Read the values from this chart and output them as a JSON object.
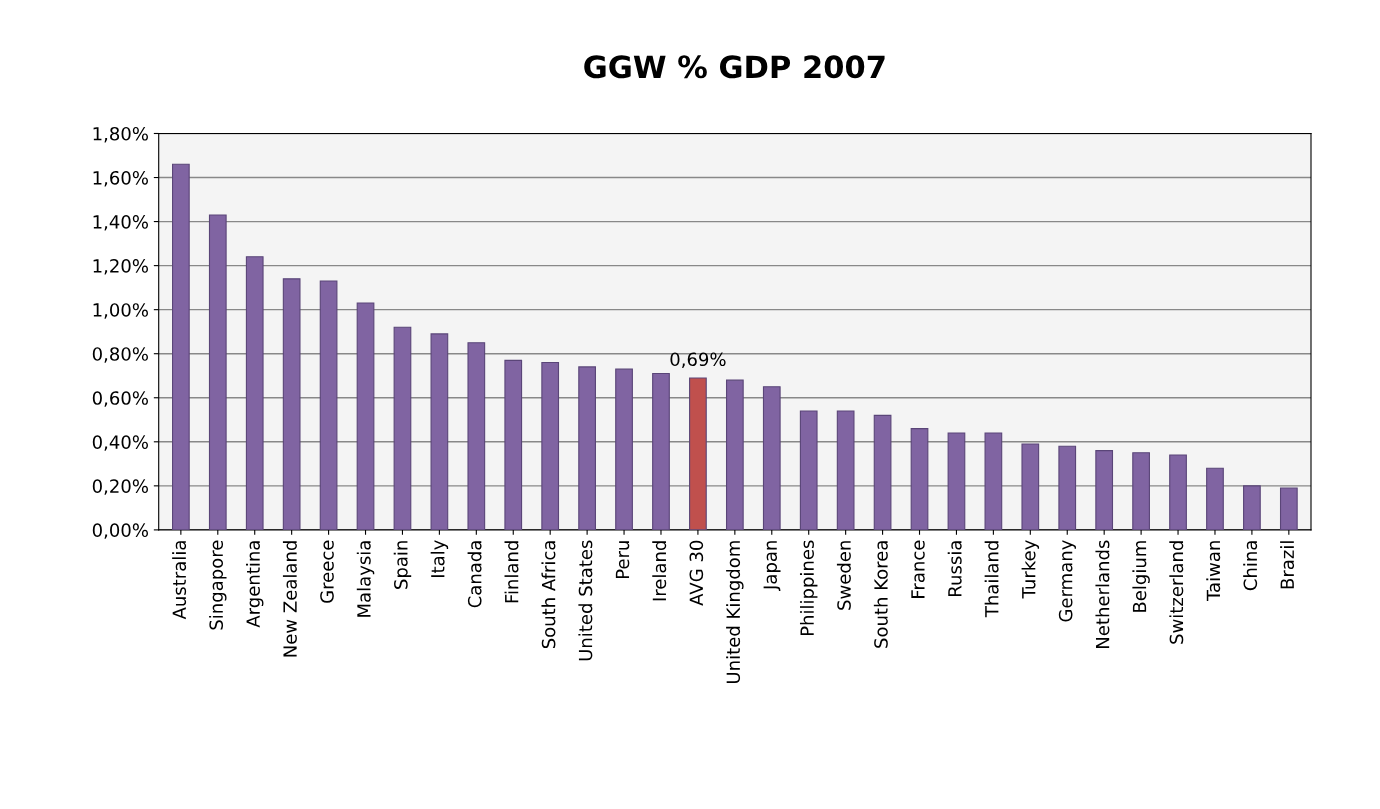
{
  "chart_data": {
    "type": "bar",
    "title": "GGW % GDP 2007",
    "categories": [
      "Australia",
      "Singapore",
      "Argentina",
      "New Zealand",
      "Greece",
      "Malaysia",
      "Spain",
      "Italy",
      "Canada",
      "Finland",
      "South Africa",
      "United States",
      "Peru",
      "Ireland",
      "AVG 30",
      "United Kingdom",
      "Japan",
      "Philippines",
      "Sweden",
      "South Korea",
      "France",
      "Russia",
      "Thailand",
      "Turkey",
      "Germany",
      "Netherlands",
      "Belgium",
      "Switzerland",
      "Taiwan",
      "China",
      "Brazil"
    ],
    "values": [
      1.66,
      1.43,
      1.24,
      1.14,
      1.13,
      1.03,
      0.92,
      0.89,
      0.85,
      0.77,
      0.76,
      0.74,
      0.73,
      0.71,
      0.69,
      0.68,
      0.65,
      0.54,
      0.54,
      0.52,
      0.46,
      0.44,
      0.44,
      0.39,
      0.38,
      0.36,
      0.35,
      0.34,
      0.28,
      0.2,
      0.19
    ],
    "colors": [
      "#8064a2",
      "#8064a2",
      "#8064a2",
      "#8064a2",
      "#8064a2",
      "#8064a2",
      "#8064a2",
      "#8064a2",
      "#8064a2",
      "#8064a2",
      "#8064a2",
      "#8064a2",
      "#8064a2",
      "#8064a2",
      "#c0504d",
      "#8064a2",
      "#8064a2",
      "#8064a2",
      "#8064a2",
      "#8064a2",
      "#8064a2",
      "#8064a2",
      "#8064a2",
      "#8064a2",
      "#8064a2",
      "#8064a2",
      "#8064a2",
      "#8064a2",
      "#8064a2",
      "#8064a2",
      "#8064a2"
    ],
    "value_labels": [
      null,
      null,
      null,
      null,
      null,
      null,
      null,
      null,
      null,
      null,
      null,
      null,
      null,
      null,
      "0,69%",
      null,
      null,
      null,
      null,
      null,
      null,
      null,
      null,
      null,
      null,
      null,
      null,
      null,
      null,
      null,
      null
    ],
    "ylim": [
      0,
      1.8
    ],
    "yticks": [
      {
        "value": 0,
        "label": "0,00%"
      },
      {
        "value": 0.2,
        "label": "0,20%"
      },
      {
        "value": 0.4,
        "label": "0,40%"
      },
      {
        "value": 0.6,
        "label": "0,60%"
      },
      {
        "value": 0.8,
        "label": "0,80%"
      },
      {
        "value": 1.0,
        "label": "1,00%"
      },
      {
        "value": 1.2,
        "label": "1,20%"
      },
      {
        "value": 1.4,
        "label": "1,40%"
      },
      {
        "value": 1.6,
        "label": "1,60%"
      },
      {
        "value": 1.8,
        "label": "1,80%"
      }
    ],
    "grid": "y",
    "legend": false
  }
}
